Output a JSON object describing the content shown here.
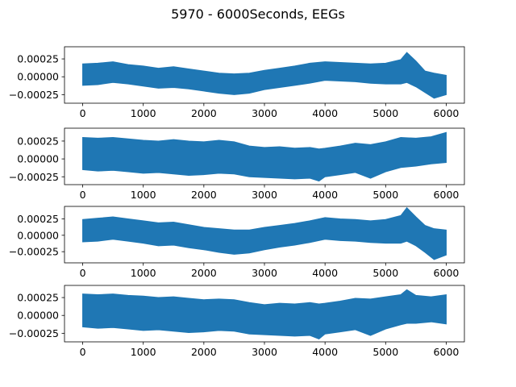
{
  "figure": {
    "title": "5970 - 6000Seconds, EEGs"
  },
  "colors": {
    "series": "#1f77b4",
    "axes": "#000000",
    "background": "#ffffff"
  },
  "chart_data": [
    {
      "type": "line",
      "xlim": [
        -300,
        6300
      ],
      "ylim": [
        -0.00037,
        0.00042
      ],
      "x_ticks": [
        0,
        1000,
        2000,
        3000,
        4000,
        5000,
        6000
      ],
      "x_tick_labels": [
        "0",
        "1000",
        "2000",
        "3000",
        "4000",
        "5000",
        "6000"
      ],
      "y_ticks": [
        0.00025,
        0.0,
        -0.00025
      ],
      "y_tick_labels": [
        "0.00025",
        "0.00000",
        "−0.00025"
      ],
      "grid": false,
      "series": [
        {
          "x": [
            0,
            250,
            500,
            750,
            1000,
            1250,
            1500,
            1750,
            2000,
            2250,
            2500,
            2750,
            3000,
            3250,
            3500,
            3750,
            4000,
            4250,
            4500,
            4750,
            5000,
            5250,
            5350,
            5500,
            5650,
            5800,
            6000
          ],
          "upper": [
            0.00018,
            0.00019,
            0.00021,
            0.00017,
            0.00015,
            0.00012,
            0.00014,
            0.00011,
            8e-05,
            5e-05,
            4e-05,
            5e-05,
            9e-05,
            0.00012,
            0.00015,
            0.00019,
            0.00021,
            0.0002,
            0.00019,
            0.00018,
            0.00019,
            0.00024,
            0.00034,
            0.00022,
            8e-05,
            5e-05,
            2e-05
          ],
          "lower": [
            -0.00012,
            -0.00011,
            -8e-05,
            -0.0001,
            -0.00013,
            -0.00016,
            -0.00015,
            -0.00017,
            -0.0002,
            -0.00023,
            -0.00025,
            -0.00023,
            -0.00018,
            -0.00015,
            -0.00012,
            -9e-05,
            -5e-05,
            -6e-05,
            -7e-05,
            -9e-05,
            -0.0001,
            -0.0001,
            -8e-05,
            -0.00014,
            -0.00022,
            -0.0003,
            -0.00025
          ]
        }
      ]
    },
    {
      "type": "line",
      "xlim": [
        -300,
        6300
      ],
      "ylim": [
        -0.00036,
        0.00043
      ],
      "x_ticks": [
        0,
        1000,
        2000,
        3000,
        4000,
        5000,
        6000
      ],
      "x_tick_labels": [
        "0",
        "1000",
        "2000",
        "3000",
        "4000",
        "5000",
        "6000"
      ],
      "y_ticks": [
        0.00025,
        0.0,
        -0.00025
      ],
      "y_tick_labels": [
        "0.00025",
        "0.00000",
        "−0.00025"
      ],
      "grid": false,
      "series": [
        {
          "x": [
            0,
            250,
            500,
            750,
            1000,
            1250,
            1500,
            1750,
            2000,
            2250,
            2500,
            2750,
            3000,
            3250,
            3500,
            3750,
            3900,
            4000,
            4250,
            4500,
            4750,
            5000,
            5250,
            5500,
            5750,
            6000
          ],
          "upper": [
            0.0003,
            0.00029,
            0.0003,
            0.00028,
            0.00026,
            0.00025,
            0.00027,
            0.00025,
            0.00024,
            0.00026,
            0.00024,
            0.00018,
            0.00016,
            0.00017,
            0.00015,
            0.00016,
            0.00014,
            0.00015,
            0.00018,
            0.00022,
            0.0002,
            0.00024,
            0.0003,
            0.00029,
            0.00031,
            0.00037
          ],
          "lower": [
            -0.00015,
            -0.00017,
            -0.00016,
            -0.00018,
            -0.0002,
            -0.00019,
            -0.00021,
            -0.00023,
            -0.00022,
            -0.0002,
            -0.00021,
            -0.00025,
            -0.00026,
            -0.00027,
            -0.00028,
            -0.00027,
            -0.00031,
            -0.00025,
            -0.00022,
            -0.00019,
            -0.00027,
            -0.00018,
            -0.00012,
            -0.0001,
            -7e-05,
            -5e-05
          ]
        }
      ]
    },
    {
      "type": "line",
      "xlim": [
        -300,
        6300
      ],
      "ylim": [
        -0.00042,
        0.00044
      ],
      "x_ticks": [
        0,
        1000,
        2000,
        3000,
        4000,
        5000,
        6000
      ],
      "x_tick_labels": [
        "0",
        "1000",
        "2000",
        "3000",
        "4000",
        "5000",
        "6000"
      ],
      "y_ticks": [
        0.00025,
        0.0,
        -0.00025
      ],
      "y_tick_labels": [
        "0.00025",
        "0.00000",
        "−0.00025"
      ],
      "grid": false,
      "series": [
        {
          "x": [
            0,
            250,
            500,
            750,
            1000,
            1250,
            1500,
            1750,
            2000,
            2250,
            2500,
            2750,
            3000,
            3250,
            3500,
            3750,
            4000,
            4250,
            4500,
            4750,
            5000,
            5250,
            5350,
            5500,
            5650,
            5800,
            6000
          ],
          "upper": [
            0.00024,
            0.00026,
            0.00028,
            0.00025,
            0.00022,
            0.00019,
            0.0002,
            0.00016,
            0.00012,
            0.0001,
            8e-05,
            8e-05,
            0.00012,
            0.00015,
            0.00018,
            0.00022,
            0.00027,
            0.00025,
            0.00024,
            0.00022,
            0.00024,
            0.0003,
            0.00042,
            0.00028,
            0.00015,
            0.0001,
            8e-05
          ],
          "lower": [
            -0.0001,
            -9e-05,
            -6e-05,
            -9e-05,
            -0.00012,
            -0.00016,
            -0.00015,
            -0.00019,
            -0.00022,
            -0.00026,
            -0.00029,
            -0.00027,
            -0.00022,
            -0.00018,
            -0.00015,
            -0.00011,
            -6e-05,
            -8e-05,
            -9e-05,
            -0.00011,
            -0.00012,
            -0.00012,
            -9e-05,
            -0.00016,
            -0.00026,
            -0.00037,
            -0.0003
          ]
        }
      ]
    },
    {
      "type": "line",
      "xlim": [
        -300,
        6300
      ],
      "ylim": [
        -0.00037,
        0.00042
      ],
      "x_ticks": [
        0,
        1000,
        2000,
        3000,
        4000,
        5000,
        6000
      ],
      "x_tick_labels": [
        "0",
        "1000",
        "2000",
        "3000",
        "4000",
        "5000",
        "6000"
      ],
      "y_ticks": [
        0.00025,
        0.0,
        -0.00025
      ],
      "y_tick_labels": [
        "0.00025",
        "0.00000",
        "−0.00025"
      ],
      "grid": false,
      "series": [
        {
          "x": [
            0,
            250,
            500,
            750,
            1000,
            1250,
            1500,
            1750,
            2000,
            2250,
            2500,
            2750,
            3000,
            3250,
            3500,
            3750,
            3900,
            4000,
            4250,
            4500,
            4750,
            5000,
            5250,
            5350,
            5500,
            5750,
            6000
          ],
          "upper": [
            0.0003,
            0.00029,
            0.0003,
            0.00028,
            0.00027,
            0.00025,
            0.00026,
            0.00024,
            0.00022,
            0.00023,
            0.00022,
            0.00018,
            0.00015,
            0.00017,
            0.00016,
            0.00018,
            0.00016,
            0.00017,
            0.0002,
            0.00024,
            0.00023,
            0.00026,
            0.00029,
            0.00036,
            0.00028,
            0.00026,
            0.00029
          ],
          "lower": [
            -0.00016,
            -0.00018,
            -0.00017,
            -0.00019,
            -0.00021,
            -0.0002,
            -0.00022,
            -0.00024,
            -0.00023,
            -0.00021,
            -0.00022,
            -0.00026,
            -0.00027,
            -0.00028,
            -0.00029,
            -0.00028,
            -0.00033,
            -0.00026,
            -0.00023,
            -0.0002,
            -0.00028,
            -0.00019,
            -0.00013,
            -0.00011,
            -0.00011,
            -9e-05,
            -0.00012
          ]
        }
      ]
    }
  ]
}
